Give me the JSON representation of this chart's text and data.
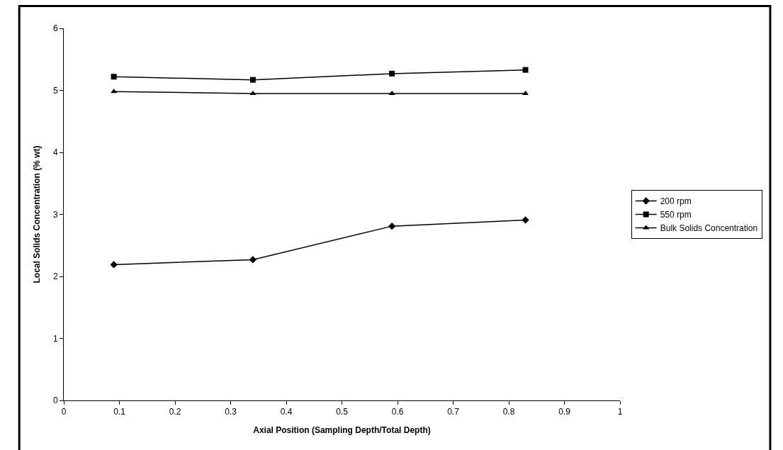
{
  "chart_data": {
    "type": "line",
    "xlabel": "Axial Position (Sampling Depth/Total Depth)",
    "ylabel": "Local Solids Concentration (% wt)",
    "x": [
      0.09,
      0.34,
      0.59,
      0.83
    ],
    "series": [
      {
        "name": "200 rpm",
        "color": "#000000",
        "marker": "diamond",
        "values": [
          2.19,
          2.27,
          2.81,
          2.91
        ]
      },
      {
        "name": "550 rpm",
        "color": "#000000",
        "marker": "square",
        "values": [
          5.22,
          5.17,
          5.27,
          5.33
        ]
      },
      {
        "name": "Bulk Solids Concentration",
        "color": "#000000",
        "marker": "triangle",
        "values": [
          4.98,
          4.95,
          4.95,
          4.95
        ]
      }
    ],
    "xlim": [
      0,
      1
    ],
    "xticks": [
      0,
      0.1,
      0.2,
      0.3,
      0.4,
      0.5,
      0.6,
      0.7,
      0.8,
      0.9,
      1
    ],
    "ylim": [
      0,
      6
    ],
    "yticks": [
      0,
      1,
      2,
      3,
      4,
      5,
      6
    ],
    "grid": false,
    "legend": "right",
    "line_style": "solid"
  }
}
